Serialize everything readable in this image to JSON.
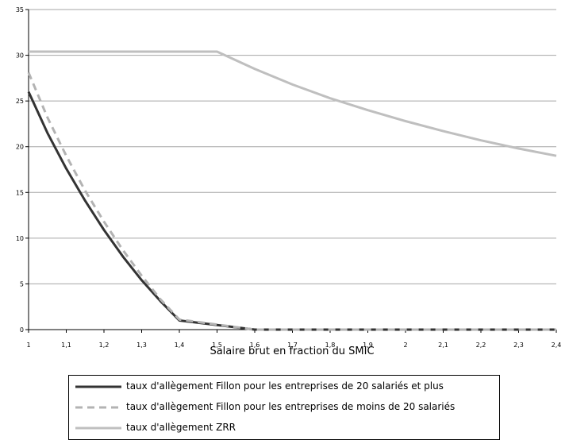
{
  "chart_data": {
    "type": "line",
    "xlabel": "Salaire brut en fraction du SMIC",
    "ylabel": "",
    "xlim": [
      1,
      2.4
    ],
    "ylim": [
      0,
      35
    ],
    "x_ticks": [
      "1",
      "1,1",
      "1,2",
      "1,3",
      "1,4",
      "1,5",
      "1,6",
      "1,7",
      "1,8",
      "1,9",
      "2",
      "2,1",
      "2,2",
      "2,3",
      "2,4"
    ],
    "y_ticks": [
      "0",
      "5",
      "10",
      "15",
      "20",
      "25",
      "30",
      "35"
    ],
    "grid": "horizontal",
    "legend_position": "bottom",
    "series": [
      {
        "name": "taux d'allègement Fillon pour les entreprises de 20 salariés et plus",
        "color": "#333333",
        "style": "solid",
        "points": [
          [
            1,
            26
          ],
          [
            1.05,
            21.5
          ],
          [
            1.1,
            17.6
          ],
          [
            1.15,
            14.1
          ],
          [
            1.2,
            10.9
          ],
          [
            1.25,
            8.0
          ],
          [
            1.3,
            5.4
          ],
          [
            1.35,
            3.1
          ],
          [
            1.4,
            1.0
          ],
          [
            1.6,
            0
          ],
          [
            2.4,
            0
          ]
        ]
      },
      {
        "name": "taux d'allègement Fillon pour les entreprises de moins de 20 salariés",
        "color": "#b3b3b3",
        "style": "dashed",
        "points": [
          [
            1,
            28.1
          ],
          [
            1.05,
            23.2
          ],
          [
            1.1,
            19.0
          ],
          [
            1.15,
            15.2
          ],
          [
            1.2,
            11.8
          ],
          [
            1.25,
            8.7
          ],
          [
            1.3,
            5.9
          ],
          [
            1.35,
            3.3
          ],
          [
            1.4,
            1.1
          ],
          [
            1.6,
            0
          ],
          [
            2.4,
            0
          ]
        ]
      },
      {
        "name": "taux d'allègement ZRR",
        "color": "#bfbfbf",
        "style": "solid",
        "points": [
          [
            1,
            30.4
          ],
          [
            1.5,
            30.4
          ],
          [
            1.6,
            28.5
          ],
          [
            1.7,
            26.8
          ],
          [
            1.8,
            25.3
          ],
          [
            1.9,
            24.0
          ],
          [
            2.0,
            22.8
          ],
          [
            2.1,
            21.7
          ],
          [
            2.2,
            20.7
          ],
          [
            2.3,
            19.8
          ],
          [
            2.4,
            19.0
          ]
        ]
      }
    ]
  },
  "legend": {
    "items": [
      "taux d'allègement Fillon pour les entreprises de 20 salariés et plus",
      "taux d'allègement Fillon pour les entreprises de moins de 20 salariés",
      "taux d'allègement ZRR"
    ]
  }
}
